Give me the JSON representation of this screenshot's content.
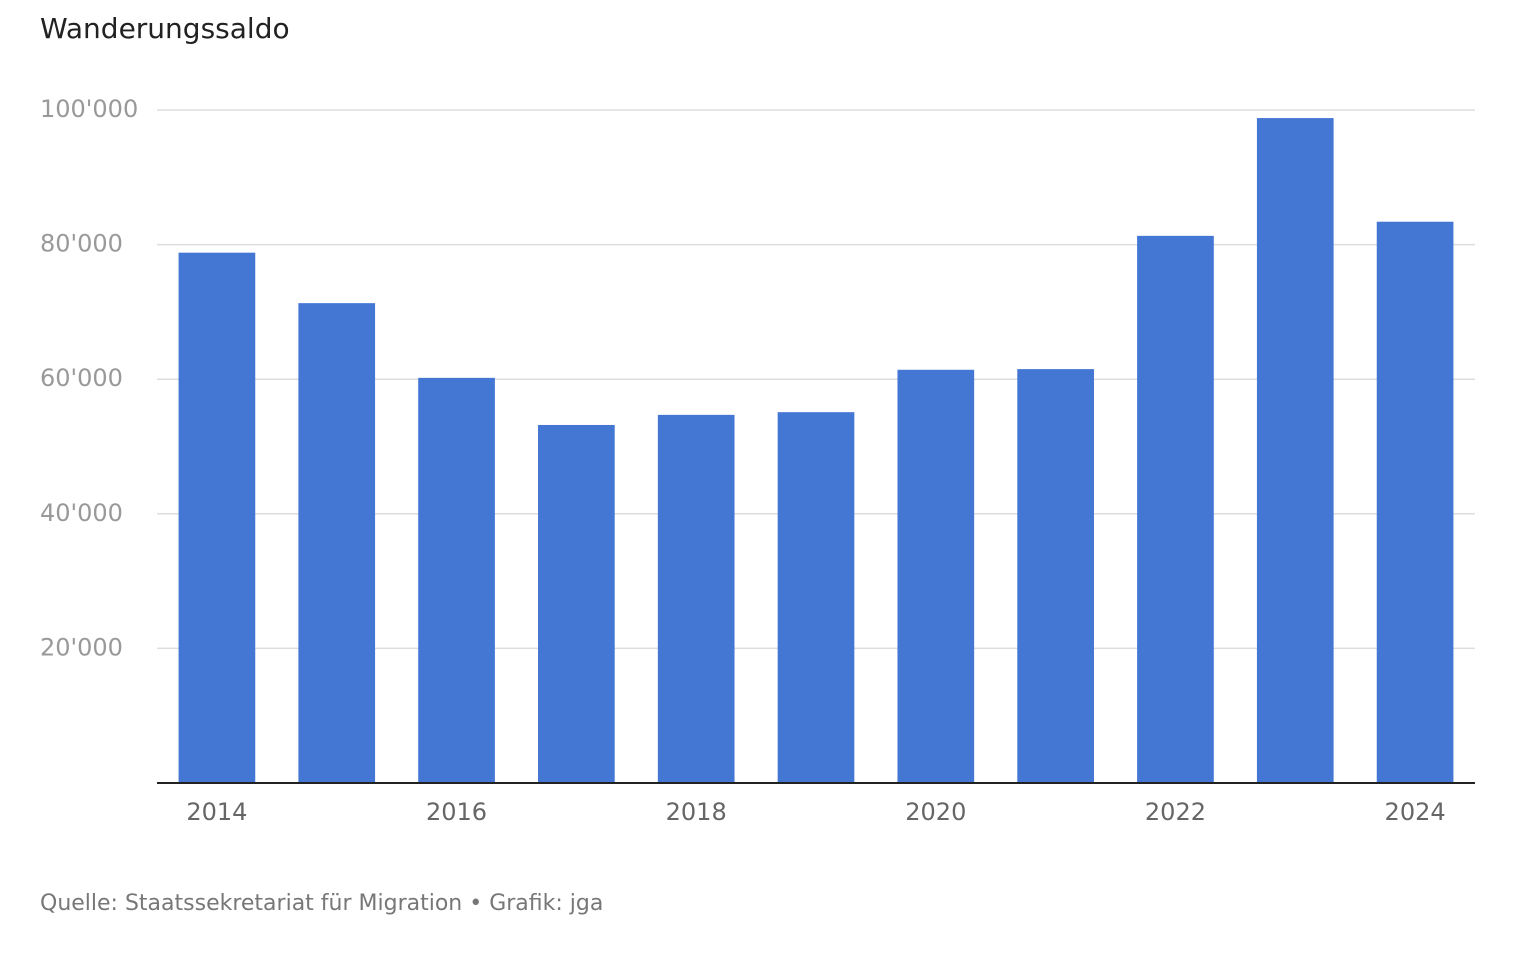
{
  "chart_data": {
    "type": "bar",
    "title": "Wanderungssaldo",
    "categories": [
      "2014",
      null,
      "2016",
      null,
      "2018",
      null,
      "2020",
      null,
      "2022",
      null,
      "2024"
    ],
    "values": [
      78800,
      71300,
      60200,
      53200,
      54700,
      55100,
      61400,
      61500,
      81300,
      98800,
      83400
    ],
    "color": "#4477d4",
    "ylim": [
      0,
      100000
    ],
    "yticks": [
      {
        "value": 20000,
        "label": "20'000"
      },
      {
        "value": 40000,
        "label": "40'000"
      },
      {
        "value": 60000,
        "label": "60'000"
      },
      {
        "value": 80000,
        "label": "80'000"
      },
      {
        "value": 100000,
        "label": "100'000"
      }
    ],
    "grid": true,
    "source": "Quelle: Staatssekretariat für Migration • Grafik: jga"
  }
}
